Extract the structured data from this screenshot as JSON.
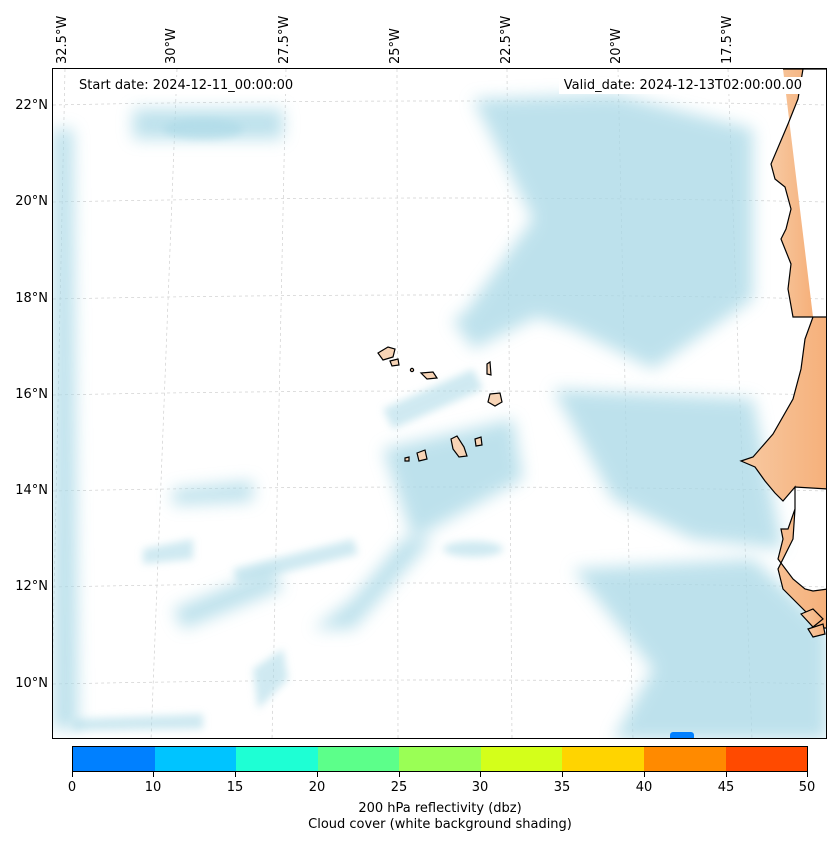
{
  "map": {
    "start_date": "Start date: 2024-12-11_00:00:00",
    "valid_date": "Valid_date: 2024-12-13T02:00:00.00",
    "lon_labels": [
      "32.5°W",
      "30°W",
      "27.5°W",
      "25°W",
      "22.5°W",
      "20°W",
      "17.5°W"
    ],
    "lat_labels": [
      "22°N",
      "20°N",
      "18°N",
      "16°N",
      "14°N",
      "12°N",
      "10°N"
    ],
    "colors": {
      "cloud": "#a8d8e6",
      "land": "#f7b98a",
      "island": "#f7d4b6",
      "coast": "#000000",
      "grid": "#cccccc"
    }
  },
  "colorbar": {
    "ticks": [
      "0",
      "10",
      "15",
      "20",
      "25",
      "30",
      "35",
      "40",
      "45",
      "50"
    ],
    "colors": [
      "#0080ff",
      "#00c4ff",
      "#1effd4",
      "#5cff8a",
      "#9aff55",
      "#d4ff1a",
      "#ffd400",
      "#ff8a00",
      "#ff4a00"
    ],
    "label_line1": "200 hPa reflectivity (dbz)",
    "label_line2": "Cloud cover (white background shading)"
  }
}
